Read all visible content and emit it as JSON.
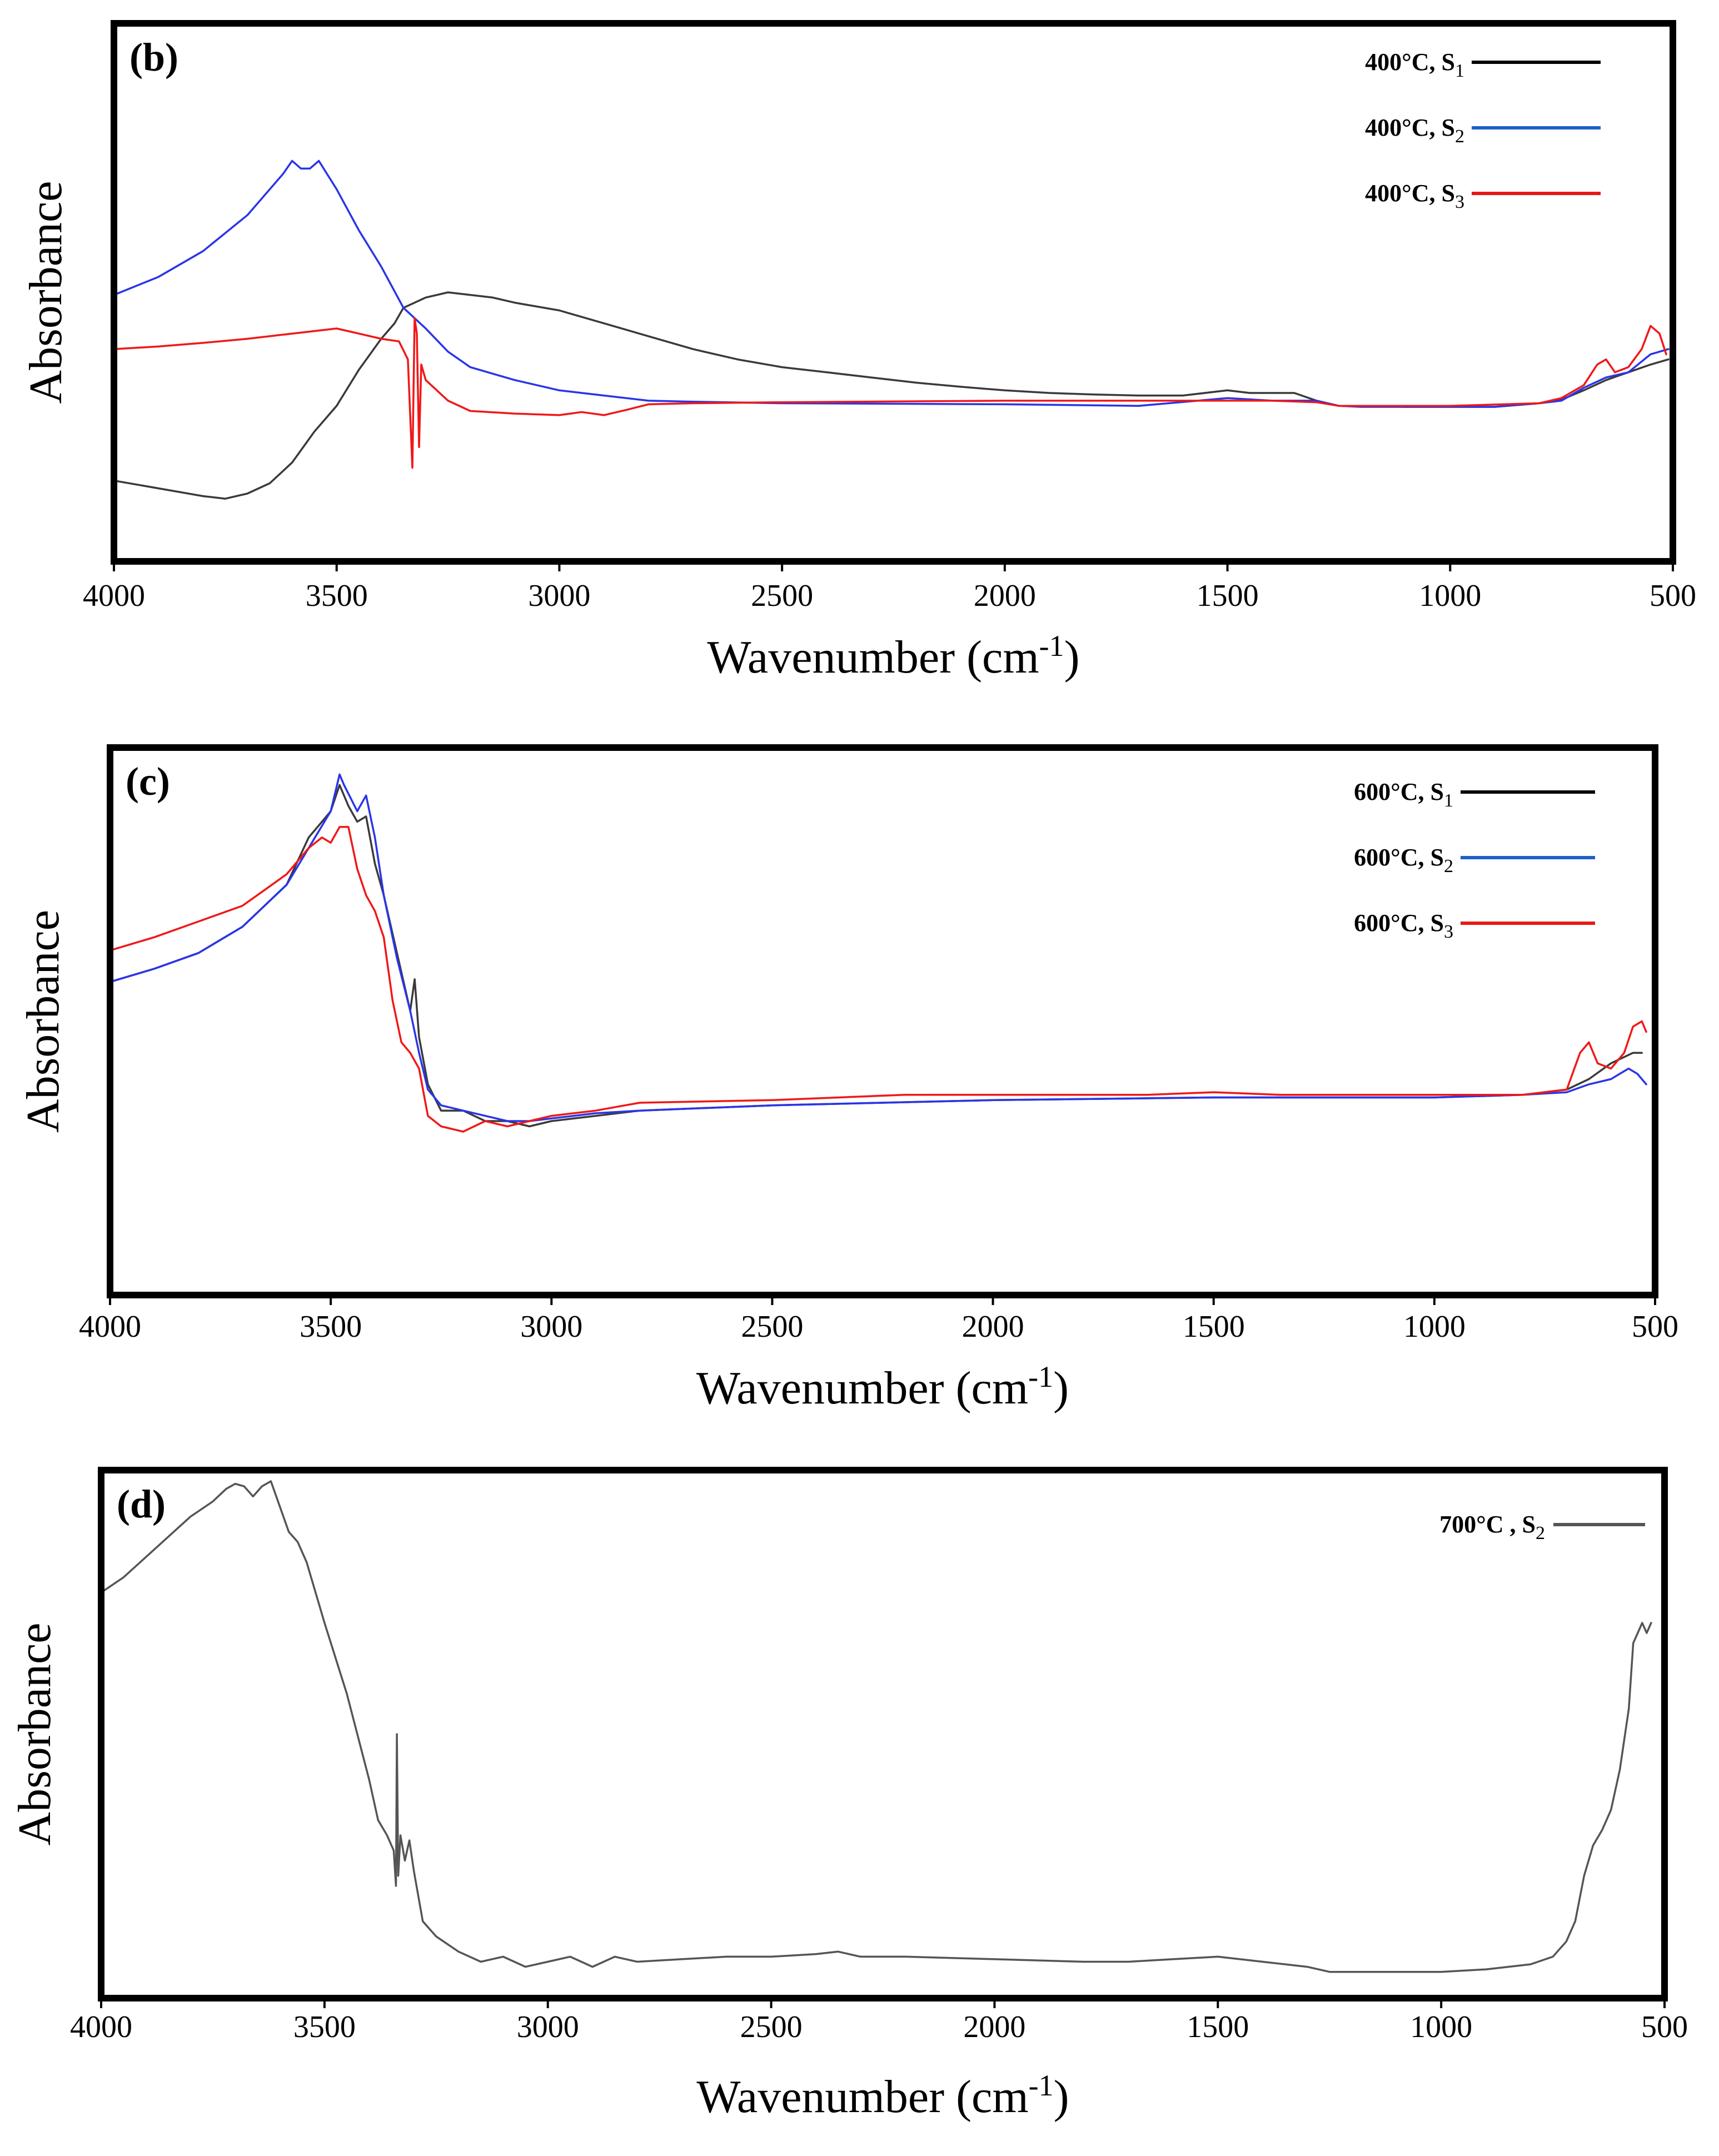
{
  "colors": {
    "frame": "#000000",
    "s1": "#3a3a3a",
    "s2": "#2a35e8",
    "s3": "#f01818",
    "s2_700": "#555555",
    "legend_blue": "#1e5fc8",
    "legend_red": "#e81818"
  },
  "chart_data": [
    {
      "type": "line",
      "panel_label": "(b)",
      "xlabel_main": "Wavenumber (cm",
      "xlabel_sup": "-1",
      "xlabel_close": ")",
      "ylabel": "Absorbance",
      "xlim": [
        4000,
        500
      ],
      "x_reversed": true,
      "ylim": [
        0,
        1
      ],
      "xticks": [
        "4000",
        "3500",
        "3000",
        "2500",
        "2000",
        "1500",
        "1000",
        "500"
      ],
      "legend_position": "top-right",
      "series": [
        {
          "name_main": "400°C, S",
          "name_sub": "1",
          "color": "#3a3a3a",
          "legend_color": "#000000",
          "x": [
            4000,
            3900,
            3800,
            3750,
            3700,
            3650,
            3600,
            3550,
            3500,
            3450,
            3400,
            3370,
            3350,
            3300,
            3250,
            3200,
            3150,
            3100,
            3000,
            2900,
            2800,
            2700,
            2600,
            2500,
            2400,
            2300,
            2200,
            2100,
            2000,
            1900,
            1800,
            1700,
            1600,
            1500,
            1450,
            1350,
            1300,
            1250,
            1200,
            1100,
            1000,
            900,
            800,
            750,
            700,
            650,
            600,
            550,
            510
          ],
          "y": [
            0.135,
            0.12,
            0.105,
            0.1,
            0.11,
            0.13,
            0.17,
            0.23,
            0.28,
            0.35,
            0.41,
            0.44,
            0.47,
            0.49,
            0.5,
            0.495,
            0.49,
            0.48,
            0.465,
            0.44,
            0.415,
            0.39,
            0.37,
            0.355,
            0.345,
            0.335,
            0.325,
            0.317,
            0.31,
            0.305,
            0.302,
            0.3,
            0.3,
            0.31,
            0.305,
            0.305,
            0.29,
            0.28,
            0.28,
            0.278,
            0.278,
            0.278,
            0.285,
            0.292,
            0.31,
            0.33,
            0.345,
            0.36,
            0.37
          ]
        },
        {
          "name_main": "400°C, S",
          "name_sub": "2",
          "color": "#2a35e8",
          "legend_color": "#1e5fc8",
          "x": [
            4000,
            3900,
            3800,
            3700,
            3650,
            3620,
            3600,
            3580,
            3560,
            3540,
            3500,
            3450,
            3400,
            3350,
            3300,
            3250,
            3200,
            3100,
            3000,
            2900,
            2800,
            2700,
            2500,
            2000,
            1700,
            1500,
            1400,
            1300,
            1250,
            1200,
            1000,
            900,
            800,
            750,
            700,
            650,
            600,
            550,
            510
          ],
          "y": [
            0.495,
            0.53,
            0.58,
            0.65,
            0.7,
            0.73,
            0.755,
            0.74,
            0.74,
            0.755,
            0.7,
            0.62,
            0.55,
            0.47,
            0.43,
            0.385,
            0.355,
            0.33,
            0.31,
            0.3,
            0.29,
            0.288,
            0.285,
            0.283,
            0.28,
            0.295,
            0.29,
            0.29,
            0.28,
            0.278,
            0.278,
            0.278,
            0.285,
            0.29,
            0.315,
            0.335,
            0.345,
            0.38,
            0.39
          ]
        },
        {
          "name_main": "400°C, S",
          "name_sub": "3",
          "color": "#f01818",
          "legend_color": "#e81818",
          "x": [
            4000,
            3900,
            3800,
            3700,
            3600,
            3500,
            3450,
            3400,
            3360,
            3340,
            3330,
            3325,
            3320,
            3315,
            3310,
            3300,
            3250,
            3200,
            3100,
            3000,
            2950,
            2900,
            2850,
            2800,
            2700,
            2500,
            2000,
            1700,
            1500,
            1400,
            1300,
            1250,
            1200,
            1000,
            800,
            750,
            700,
            670,
            650,
            630,
            600,
            570,
            550,
            530,
            515
          ],
          "y": [
            0.39,
            0.395,
            0.402,
            0.41,
            0.42,
            0.43,
            0.42,
            0.41,
            0.405,
            0.37,
            0.16,
            0.45,
            0.42,
            0.2,
            0.36,
            0.33,
            0.29,
            0.27,
            0.265,
            0.262,
            0.268,
            0.262,
            0.272,
            0.283,
            0.285,
            0.287,
            0.29,
            0.29,
            0.29,
            0.29,
            0.287,
            0.28,
            0.28,
            0.28,
            0.285,
            0.295,
            0.32,
            0.36,
            0.37,
            0.345,
            0.355,
            0.39,
            0.435,
            0.42,
            0.38
          ]
        }
      ]
    },
    {
      "type": "line",
      "panel_label": "(c)",
      "xlabel_main": "Wavenumber (cm",
      "xlabel_sup": "-1",
      "xlabel_close": ")",
      "ylabel": "Absorbance",
      "xlim": [
        4000,
        500
      ],
      "x_reversed": true,
      "ylim": [
        0,
        1
      ],
      "xticks": [
        "4000",
        "3500",
        "3000",
        "2500",
        "2000",
        "1500",
        "1000",
        "500"
      ],
      "legend_position": "top-right",
      "series": [
        {
          "name_main": "600°C, S",
          "name_sub": "1",
          "color": "#3a3a3a",
          "legend_color": "#000000",
          "x": [
            4000,
            3900,
            3800,
            3700,
            3600,
            3550,
            3520,
            3500,
            3480,
            3460,
            3440,
            3420,
            3400,
            3380,
            3350,
            3320,
            3310,
            3300,
            3280,
            3250,
            3200,
            3150,
            3100,
            3050,
            3000,
            2900,
            2800,
            2500,
            2000,
            1500,
            1000,
            800,
            700,
            650,
            600,
            550,
            530
          ],
          "y": [
            0.575,
            0.6,
            0.63,
            0.68,
            0.76,
            0.85,
            0.88,
            0.9,
            0.95,
            0.91,
            0.88,
            0.89,
            0.8,
            0.74,
            0.63,
            0.52,
            0.58,
            0.47,
            0.38,
            0.33,
            0.33,
            0.31,
            0.31,
            0.3,
            0.31,
            0.32,
            0.33,
            0.34,
            0.35,
            0.355,
            0.355,
            0.36,
            0.37,
            0.39,
            0.42,
            0.44,
            0.44
          ]
        },
        {
          "name_main": "600°C, S",
          "name_sub": "2",
          "color": "#2a35e8",
          "legend_color": "#1e5fc8",
          "x": [
            4000,
            3900,
            3800,
            3700,
            3600,
            3550,
            3500,
            3480,
            3470,
            3440,
            3420,
            3400,
            3380,
            3350,
            3320,
            3300,
            3280,
            3250,
            3200,
            3150,
            3100,
            3050,
            3000,
            2900,
            2800,
            2500,
            2000,
            1500,
            1000,
            800,
            700,
            650,
            600,
            560,
            540,
            520
          ],
          "y": [
            0.575,
            0.6,
            0.63,
            0.68,
            0.76,
            0.83,
            0.9,
            0.97,
            0.95,
            0.9,
            0.93,
            0.85,
            0.74,
            0.62,
            0.52,
            0.44,
            0.37,
            0.34,
            0.33,
            0.32,
            0.31,
            0.31,
            0.315,
            0.325,
            0.33,
            0.34,
            0.35,
            0.355,
            0.355,
            0.36,
            0.365,
            0.38,
            0.39,
            0.41,
            0.4,
            0.38
          ]
        },
        {
          "name_main": "600°C, S",
          "name_sub": "3",
          "color": "#f01818",
          "legend_color": "#e81818",
          "x": [
            4000,
            3900,
            3800,
            3700,
            3650,
            3600,
            3550,
            3520,
            3500,
            3480,
            3460,
            3440,
            3420,
            3400,
            3380,
            3360,
            3340,
            3320,
            3300,
            3280,
            3250,
            3200,
            3150,
            3100,
            3050,
            3000,
            2900,
            2800,
            2500,
            2200,
            2000,
            1650,
            1500,
            1350,
            1000,
            800,
            700,
            670,
            650,
            630,
            600,
            570,
            550,
            530,
            520
          ],
          "y": [
            0.635,
            0.66,
            0.69,
            0.72,
            0.75,
            0.78,
            0.83,
            0.85,
            0.84,
            0.87,
            0.87,
            0.79,
            0.74,
            0.71,
            0.66,
            0.54,
            0.46,
            0.44,
            0.41,
            0.32,
            0.3,
            0.29,
            0.31,
            0.3,
            0.31,
            0.32,
            0.33,
            0.345,
            0.35,
            0.36,
            0.36,
            0.36,
            0.365,
            0.36,
            0.36,
            0.36,
            0.37,
            0.44,
            0.46,
            0.42,
            0.41,
            0.44,
            0.49,
            0.5,
            0.48
          ]
        }
      ]
    },
    {
      "type": "line",
      "panel_label": "(d)",
      "xlabel_main": "Wavenumber (cm",
      "xlabel_sup": "-1",
      "xlabel_close": ")",
      "ylabel": "Absorbance",
      "xlim": [
        4000,
        500
      ],
      "x_reversed": true,
      "ylim": [
        0,
        1
      ],
      "xticks": [
        "4000",
        "3500",
        "3000",
        "2500",
        "2000",
        "1500",
        "1000",
        "500"
      ],
      "legend_position": "top-right",
      "series": [
        {
          "name_main": "700°C , S",
          "name_sub": "2",
          "color": "#555555",
          "legend_color": "#555555",
          "x": [
            4000,
            3950,
            3900,
            3850,
            3800,
            3750,
            3720,
            3700,
            3680,
            3660,
            3640,
            3620,
            3600,
            3580,
            3560,
            3540,
            3500,
            3450,
            3400,
            3380,
            3360,
            3345,
            3340,
            3338,
            3335,
            3330,
            3320,
            3310,
            3300,
            3280,
            3250,
            3200,
            3150,
            3100,
            3050,
            3000,
            2950,
            2900,
            2850,
            2800,
            2700,
            2600,
            2500,
            2400,
            2350,
            2300,
            2200,
            2000,
            1800,
            1700,
            1600,
            1500,
            1400,
            1300,
            1250,
            1200,
            1100,
            1000,
            900,
            800,
            750,
            720,
            700,
            680,
            660,
            640,
            620,
            600,
            580,
            570,
            560,
            550,
            540,
            530
          ],
          "y": [
            0.78,
            0.81,
            0.85,
            0.89,
            0.93,
            0.96,
            0.985,
            0.995,
            0.99,
            0.97,
            0.99,
            1.0,
            0.95,
            0.9,
            0.88,
            0.84,
            0.72,
            0.58,
            0.41,
            0.33,
            0.3,
            0.27,
            0.2,
            0.5,
            0.22,
            0.3,
            0.25,
            0.29,
            0.23,
            0.13,
            0.1,
            0.07,
            0.05,
            0.06,
            0.04,
            0.05,
            0.06,
            0.04,
            0.06,
            0.05,
            0.055,
            0.06,
            0.06,
            0.065,
            0.07,
            0.06,
            0.06,
            0.055,
            0.05,
            0.05,
            0.055,
            0.06,
            0.05,
            0.04,
            0.03,
            0.03,
            0.03,
            0.03,
            0.035,
            0.045,
            0.06,
            0.09,
            0.13,
            0.22,
            0.28,
            0.31,
            0.35,
            0.43,
            0.55,
            0.68,
            0.7,
            0.72,
            0.7,
            0.72
          ]
        }
      ]
    }
  ]
}
